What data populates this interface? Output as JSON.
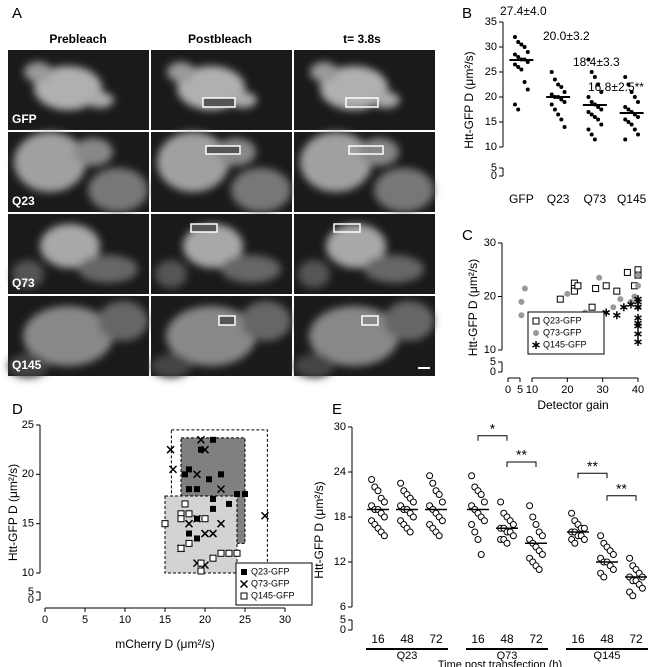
{
  "panel_labels": [
    "A",
    "B",
    "C",
    "D",
    "E"
  ],
  "image_grid": {
    "columns": [
      "Prebleach",
      "Postbleach",
      "t= 3.8s"
    ],
    "rows": [
      "GFP",
      "Q23",
      "Q73",
      "Q145"
    ]
  },
  "chart_data": [
    {
      "type": "dotplot",
      "ylabel": "Htt-GFP D (μm²/s)",
      "categories": [
        "GFP",
        "Q23",
        "Q73",
        "Q145"
      ],
      "values": [
        [
          32,
          31,
          30.5,
          30,
          29,
          28.5,
          28,
          27.5,
          27.5,
          27,
          26.5,
          26,
          25.5,
          23,
          21.5,
          18.5,
          17.5
        ],
        [
          25,
          23.5,
          22.5,
          22,
          21,
          20.5,
          20,
          20,
          19.5,
          19,
          18.5,
          17.5,
          16.5,
          15.5,
          14
        ],
        [
          27.5,
          25,
          24,
          22.5,
          21,
          20,
          19,
          18.5,
          18,
          17.5,
          17,
          16.5,
          16,
          15.5,
          14.5,
          13.5,
          12.5,
          11.5
        ],
        [
          24,
          22.5,
          21,
          20,
          19,
          18,
          17.5,
          17,
          16.5,
          16,
          15.5,
          15,
          14.5,
          13.5,
          12.5,
          11.5
        ]
      ],
      "means": [
        27.4,
        20.0,
        18.4,
        16.8
      ],
      "value_labels": [
        "27.4±4.0",
        "20.0±3.2",
        "18.4±3.3",
        "16.8±2.5**"
      ],
      "color": "#000000",
      "ylim": [
        0,
        35
      ],
      "yticks": [
        0,
        5,
        10,
        15,
        20,
        25,
        30,
        35
      ],
      "y_break": [
        5,
        10
      ]
    },
    {
      "type": "scatter",
      "xlabel": "Detector gain",
      "ylabel": "Htt-GFP D (μm²/s)",
      "series": [
        {
          "name": "Q23-GFP",
          "color": "#000000",
          "marker": "square-open",
          "x": [
            15,
            15,
            18,
            22,
            22,
            22,
            23,
            27,
            28,
            31,
            34,
            37,
            40,
            40,
            39
          ],
          "values": [
            14.5,
            15.2,
            19.5,
            22.5,
            21.5,
            21,
            22,
            18,
            21.5,
            22,
            21,
            24.5,
            25,
            24,
            22
          ]
        },
        {
          "name": "Q73-GFP",
          "color": "#999999",
          "marker": "circle",
          "x": [
            7,
            8,
            7,
            20,
            25,
            29,
            33,
            35,
            38,
            39,
            40,
            40,
            40
          ],
          "values": [
            16.5,
            21.5,
            19,
            20.5,
            17,
            23.5,
            18,
            19.5,
            19,
            20,
            22,
            24,
            18
          ]
        },
        {
          "name": "Q145-GFP",
          "color": "#000000",
          "marker": "asterisk",
          "x": [
            25,
            29,
            31,
            34,
            36,
            38,
            40,
            40,
            40,
            40,
            40,
            40,
            40,
            40
          ],
          "values": [
            15.5,
            15.5,
            17,
            16.5,
            18,
            18.5,
            19,
            18,
            16,
            14.5,
            13,
            11.5,
            19.5,
            15
          ]
        }
      ],
      "xlim": [
        0,
        40
      ],
      "xticks": [
        0,
        5,
        10,
        20,
        30,
        40
      ],
      "x_break": [
        5,
        10
      ],
      "ylim": [
        0,
        30
      ],
      "yticks": [
        0,
        5,
        10,
        20,
        30
      ],
      "y_break": [
        5,
        10
      ],
      "legend": "lower right"
    },
    {
      "type": "scatter",
      "xlabel": "mCherry D (μm²/s)",
      "ylabel": "Htt-GFP D (μm²/s)",
      "series": [
        {
          "name": "Q23-GFP",
          "color": "#000000",
          "marker": "square",
          "region": {
            "x": [
              17,
              25
            ],
            "y": [
              13,
              23.7
            ],
            "fill": "#808080"
          },
          "x": [
            17.5,
            18,
            18,
            19,
            19.5,
            20.5,
            21,
            21,
            19,
            18,
            19,
            22,
            23,
            24,
            25,
            21
          ],
          "values": [
            20,
            18.5,
            20.5,
            18.5,
            22.5,
            19.5,
            23.5,
            16.5,
            15.5,
            14,
            13.5,
            20,
            17,
            18,
            18,
            17.5
          ]
        },
        {
          "name": "Q73-GFP",
          "color": "#000000",
          "marker": "x",
          "region": {
            "x": [
              15.8,
              27.8
            ],
            "y": [
              11,
              24.5
            ],
            "fill": "none"
          },
          "x": [
            15.7,
            16,
            19.5,
            20,
            19,
            22,
            20,
            22,
            19,
            21,
            18,
            19,
            20,
            27.5,
            17
          ],
          "values": [
            22.5,
            20.5,
            23.5,
            22.5,
            20,
            18.5,
            14,
            15,
            15.5,
            14,
            15,
            11,
            10.8,
            15.8,
            12.5
          ]
        },
        {
          "name": "Q145-GFP",
          "color": "#000000",
          "marker": "square-open",
          "region": {
            "x": [
              15,
              24
            ],
            "y": [
              10,
              17.8
            ],
            "fill": "#d3d3d3"
          },
          "x": [
            15,
            17,
            17,
            18,
            17,
            19.5,
            19.5,
            21,
            22,
            23,
            24,
            20,
            17.5,
            18
          ],
          "values": [
            15,
            16,
            15.5,
            13,
            12.5,
            11,
            10.2,
            11.5,
            12,
            12,
            12,
            15.5,
            17,
            16
          ]
        }
      ],
      "xlim": [
        0,
        30
      ],
      "xticks": [
        0,
        5,
        10,
        15,
        20,
        25,
        30
      ],
      "ylim": [
        0,
        25
      ],
      "yticks": [
        0,
        5,
        10,
        15,
        20,
        25
      ],
      "y_break": [
        5,
        10
      ],
      "legend": "lower right"
    },
    {
      "type": "grouped-dotplot",
      "xlabel": "Time post transfection (h)",
      "ylabel": "Htt-GFP D (μm²/s)",
      "categories": [
        "16",
        "48",
        "72",
        "16",
        "48",
        "72",
        "16",
        "48",
        "72"
      ],
      "groups": [
        {
          "name": "Q23",
          "span": [
            0,
            2
          ]
        },
        {
          "name": "Q73",
          "span": [
            3,
            5
          ]
        },
        {
          "name": "Q145",
          "span": [
            6,
            8
          ]
        }
      ],
      "values": [
        [
          23,
          22,
          21.5,
          20.5,
          20,
          19.5,
          19,
          19,
          18.5,
          18,
          17.5,
          17,
          16.5,
          16,
          15.5
        ],
        [
          22.5,
          21.5,
          21,
          20.5,
          20,
          19.5,
          19,
          19,
          18.5,
          18,
          17.5,
          17,
          16.5,
          16
        ],
        [
          23.5,
          22.5,
          21.5,
          21,
          20,
          19.5,
          19,
          18.5,
          18,
          17.5,
          17,
          16.5,
          16,
          15.5
        ],
        [
          23.5,
          22,
          21.5,
          21,
          20,
          19.5,
          19,
          18.5,
          18,
          17.5,
          17,
          16,
          15,
          13
        ],
        [
          20,
          18.5,
          18,
          17.5,
          17,
          16.5,
          16.5,
          16,
          16,
          15.5,
          15,
          15,
          14.5
        ],
        [
          19.5,
          18,
          17,
          16,
          15.5,
          15,
          14.5,
          14,
          13.5,
          13,
          12.5,
          12,
          11.5,
          11
        ],
        [
          18.5,
          17.5,
          17,
          16.5,
          16.5,
          16,
          16,
          15.5,
          15.5,
          15,
          15,
          14.5
        ],
        [
          15.5,
          14.5,
          14,
          13.5,
          13,
          12.5,
          12,
          12,
          11.5,
          11,
          10.5,
          10
        ],
        [
          12.5,
          11.5,
          11,
          10.5,
          10,
          10,
          9.5,
          9.5,
          9,
          8.5,
          8,
          7.5
        ]
      ],
      "means": [
        19,
        19,
        19,
        19,
        16.5,
        14.5,
        16,
        12,
        10
      ],
      "color": "#000000",
      "marker": "circle-open",
      "annotations": [
        {
          "text": "*",
          "between": [
            3,
            4
          ]
        },
        {
          "text": "**",
          "between": [
            4,
            5
          ]
        },
        {
          "text": "**",
          "between": [
            6,
            7
          ]
        },
        {
          "text": "**",
          "between": [
            7,
            8
          ]
        }
      ],
      "ylim": [
        0,
        30
      ],
      "yticks": [
        0,
        5,
        6,
        12,
        18,
        24,
        30
      ],
      "y_break": [
        5,
        6
      ]
    }
  ]
}
